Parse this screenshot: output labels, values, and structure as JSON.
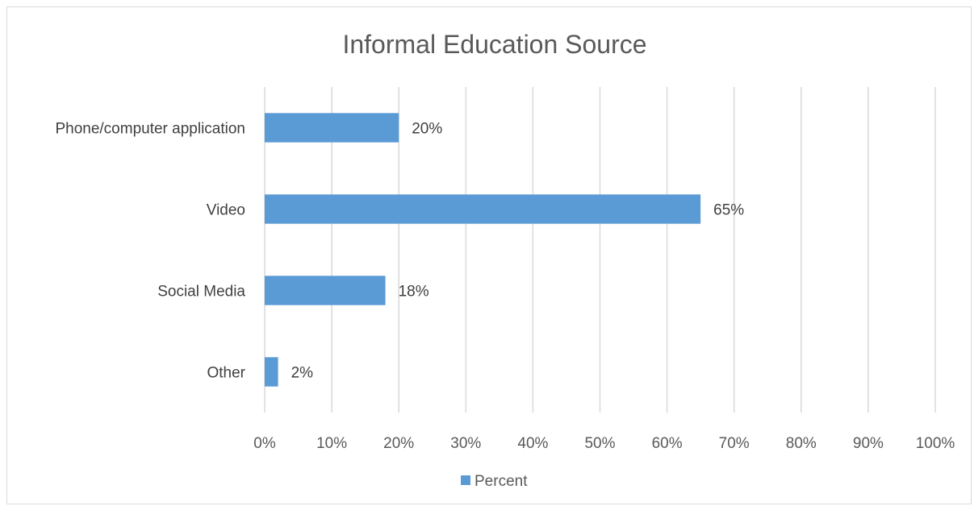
{
  "chart_data": {
    "type": "bar",
    "orientation": "horizontal",
    "title": "Informal Education Source",
    "categories": [
      "Phone/computer application",
      "Video",
      "Social Media",
      "Other"
    ],
    "series": [
      {
        "name": "Percent",
        "values": [
          0.2,
          0.65,
          0.18,
          0.02
        ],
        "data_labels": [
          "20%",
          "65%",
          "18%",
          "2%"
        ]
      }
    ],
    "xlim": [
      0,
      1
    ],
    "x_ticks": [
      "0%",
      "10%",
      "20%",
      "30%",
      "40%",
      "50%",
      "60%",
      "70%",
      "80%",
      "90%",
      "100%"
    ],
    "grid": "vertical",
    "legend_position": "bottom",
    "colors": {
      "bar": "#5b9bd5",
      "grid": "#d9d9d9"
    }
  }
}
